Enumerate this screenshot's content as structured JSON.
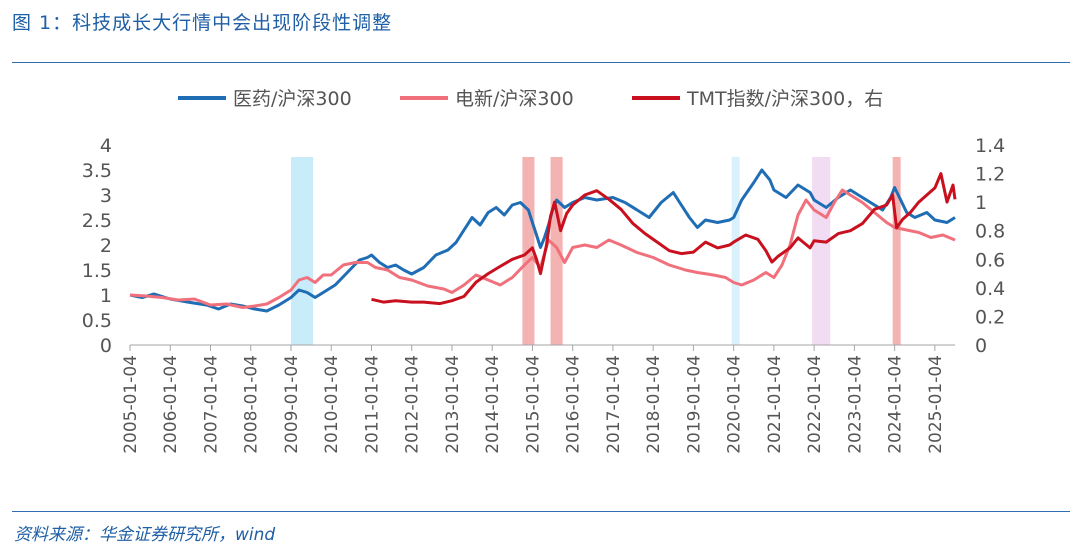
{
  "figure": {
    "title": "图 1：科技成长大行情中会出现阶段性调整",
    "source": "资料来源：华金证券研究所，wind"
  },
  "chart_data": {
    "type": "line",
    "x_start_year": 2005,
    "x_end_year": 2025.5,
    "x_tick_labels": [
      "2005-01-04",
      "2006-01-04",
      "2007-01-04",
      "2008-01-04",
      "2009-01-04",
      "2010-01-04",
      "2011-01-04",
      "2012-01-04",
      "2013-01-04",
      "2014-01-04",
      "2015-01-04",
      "2016-01-04",
      "2017-01-04",
      "2018-01-04",
      "2019-01-04",
      "2020-01-04",
      "2021-01-04",
      "2022-01-04",
      "2023-01-04",
      "2024-01-04",
      "2025-01-04"
    ],
    "y_left": {
      "min": 0,
      "max": 4,
      "ticks": [
        "0",
        "0.5",
        "1",
        "1.5",
        "2",
        "2.5",
        "3",
        "3.5",
        "4"
      ]
    },
    "y_right": {
      "min": 0,
      "max": 1.4,
      "ticks": [
        "0",
        "0.2",
        "0.4",
        "0.6",
        "0.8",
        "1",
        "1.2",
        "1.4"
      ]
    },
    "series": [
      {
        "name": "医药/沪深300",
        "axis": "left",
        "color": "#1f6db5",
        "points": [
          [
            2005.0,
            1.0
          ],
          [
            2005.3,
            0.95
          ],
          [
            2005.6,
            1.02
          ],
          [
            2006.0,
            0.92
          ],
          [
            2006.5,
            0.85
          ],
          [
            2006.9,
            0.8
          ],
          [
            2007.2,
            0.72
          ],
          [
            2007.5,
            0.82
          ],
          [
            2007.8,
            0.78
          ],
          [
            2008.1,
            0.72
          ],
          [
            2008.4,
            0.68
          ],
          [
            2008.7,
            0.8
          ],
          [
            2009.0,
            0.95
          ],
          [
            2009.2,
            1.1
          ],
          [
            2009.4,
            1.05
          ],
          [
            2009.6,
            0.95
          ],
          [
            2009.8,
            1.05
          ],
          [
            2010.1,
            1.2
          ],
          [
            2010.4,
            1.45
          ],
          [
            2010.7,
            1.7
          ],
          [
            2010.9,
            1.75
          ],
          [
            2011.0,
            1.8
          ],
          [
            2011.2,
            1.65
          ],
          [
            2011.4,
            1.55
          ],
          [
            2011.6,
            1.6
          ],
          [
            2011.8,
            1.5
          ],
          [
            2012.0,
            1.42
          ],
          [
            2012.3,
            1.55
          ],
          [
            2012.6,
            1.8
          ],
          [
            2012.9,
            1.9
          ],
          [
            2013.1,
            2.05
          ],
          [
            2013.3,
            2.3
          ],
          [
            2013.5,
            2.55
          ],
          [
            2013.7,
            2.4
          ],
          [
            2013.9,
            2.65
          ],
          [
            2014.1,
            2.75
          ],
          [
            2014.3,
            2.6
          ],
          [
            2014.5,
            2.8
          ],
          [
            2014.7,
            2.85
          ],
          [
            2014.9,
            2.7
          ],
          [
            2015.0,
            2.45
          ],
          [
            2015.1,
            2.2
          ],
          [
            2015.2,
            1.95
          ],
          [
            2015.3,
            2.15
          ],
          [
            2015.4,
            2.4
          ],
          [
            2015.5,
            2.7
          ],
          [
            2015.6,
            2.9
          ],
          [
            2015.8,
            2.75
          ],
          [
            2016.0,
            2.85
          ],
          [
            2016.3,
            2.95
          ],
          [
            2016.6,
            2.9
          ],
          [
            2017.0,
            2.95
          ],
          [
            2017.3,
            2.85
          ],
          [
            2017.6,
            2.7
          ],
          [
            2017.9,
            2.55
          ],
          [
            2018.2,
            2.85
          ],
          [
            2018.5,
            3.05
          ],
          [
            2018.7,
            2.8
          ],
          [
            2018.9,
            2.55
          ],
          [
            2019.1,
            2.35
          ],
          [
            2019.3,
            2.5
          ],
          [
            2019.6,
            2.45
          ],
          [
            2019.9,
            2.5
          ],
          [
            2020.0,
            2.55
          ],
          [
            2020.2,
            2.9
          ],
          [
            2020.5,
            3.25
          ],
          [
            2020.7,
            3.5
          ],
          [
            2020.9,
            3.3
          ],
          [
            2021.0,
            3.1
          ],
          [
            2021.3,
            2.95
          ],
          [
            2021.6,
            3.2
          ],
          [
            2021.9,
            3.05
          ],
          [
            2022.0,
            2.9
          ],
          [
            2022.3,
            2.75
          ],
          [
            2022.6,
            2.95
          ],
          [
            2022.9,
            3.1
          ],
          [
            2023.1,
            3.0
          ],
          [
            2023.4,
            2.85
          ],
          [
            2023.7,
            2.7
          ],
          [
            2023.9,
            2.95
          ],
          [
            2024.0,
            3.15
          ],
          [
            2024.15,
            2.9
          ],
          [
            2024.3,
            2.65
          ],
          [
            2024.5,
            2.55
          ],
          [
            2024.8,
            2.65
          ],
          [
            2025.0,
            2.5
          ],
          [
            2025.3,
            2.45
          ],
          [
            2025.5,
            2.55
          ]
        ]
      },
      {
        "name": "电新/沪深300",
        "axis": "left",
        "color": "#f0707c",
        "points": [
          [
            2005.0,
            1.0
          ],
          [
            2005.4,
            0.98
          ],
          [
            2005.8,
            0.95
          ],
          [
            2006.2,
            0.9
          ],
          [
            2006.6,
            0.92
          ],
          [
            2007.0,
            0.8
          ],
          [
            2007.4,
            0.82
          ],
          [
            2007.8,
            0.75
          ],
          [
            2008.1,
            0.78
          ],
          [
            2008.4,
            0.82
          ],
          [
            2008.7,
            0.95
          ],
          [
            2009.0,
            1.1
          ],
          [
            2009.2,
            1.3
          ],
          [
            2009.4,
            1.35
          ],
          [
            2009.6,
            1.25
          ],
          [
            2009.8,
            1.4
          ],
          [
            2010.0,
            1.4
          ],
          [
            2010.3,
            1.6
          ],
          [
            2010.6,
            1.65
          ],
          [
            2010.9,
            1.65
          ],
          [
            2011.1,
            1.55
          ],
          [
            2011.4,
            1.5
          ],
          [
            2011.7,
            1.35
          ],
          [
            2012.0,
            1.3
          ],
          [
            2012.4,
            1.18
          ],
          [
            2012.8,
            1.12
          ],
          [
            2013.0,
            1.05
          ],
          [
            2013.3,
            1.2
          ],
          [
            2013.6,
            1.4
          ],
          [
            2013.9,
            1.3
          ],
          [
            2014.2,
            1.2
          ],
          [
            2014.5,
            1.35
          ],
          [
            2014.8,
            1.6
          ],
          [
            2015.0,
            1.75
          ],
          [
            2015.1,
            1.65
          ],
          [
            2015.2,
            1.55
          ],
          [
            2015.4,
            2.1
          ],
          [
            2015.6,
            1.95
          ],
          [
            2015.8,
            1.65
          ],
          [
            2016.0,
            1.95
          ],
          [
            2016.3,
            2.0
          ],
          [
            2016.6,
            1.95
          ],
          [
            2016.9,
            2.1
          ],
          [
            2017.2,
            2.0
          ],
          [
            2017.6,
            1.85
          ],
          [
            2018.0,
            1.75
          ],
          [
            2018.4,
            1.6
          ],
          [
            2018.8,
            1.5
          ],
          [
            2019.1,
            1.45
          ],
          [
            2019.5,
            1.4
          ],
          [
            2019.8,
            1.35
          ],
          [
            2020.0,
            1.25
          ],
          [
            2020.2,
            1.2
          ],
          [
            2020.5,
            1.3
          ],
          [
            2020.8,
            1.45
          ],
          [
            2021.0,
            1.35
          ],
          [
            2021.2,
            1.6
          ],
          [
            2021.4,
            2.0
          ],
          [
            2021.6,
            2.6
          ],
          [
            2021.8,
            2.9
          ],
          [
            2022.0,
            2.7
          ],
          [
            2022.3,
            2.55
          ],
          [
            2022.5,
            2.85
          ],
          [
            2022.7,
            3.1
          ],
          [
            2022.9,
            3.0
          ],
          [
            2023.2,
            2.85
          ],
          [
            2023.5,
            2.65
          ],
          [
            2023.8,
            2.45
          ],
          [
            2024.0,
            2.35
          ],
          [
            2024.3,
            2.3
          ],
          [
            2024.6,
            2.25
          ],
          [
            2024.9,
            2.15
          ],
          [
            2025.2,
            2.2
          ],
          [
            2025.5,
            2.1
          ]
        ]
      },
      {
        "name": "TMT指数/沪深300，右",
        "axis": "right",
        "color": "#c8101e",
        "points": [
          [
            2011.0,
            0.32
          ],
          [
            2011.3,
            0.3
          ],
          [
            2011.6,
            0.31
          ],
          [
            2012.0,
            0.3
          ],
          [
            2012.3,
            0.3
          ],
          [
            2012.7,
            0.29
          ],
          [
            2013.0,
            0.31
          ],
          [
            2013.3,
            0.34
          ],
          [
            2013.6,
            0.44
          ],
          [
            2013.9,
            0.5
          ],
          [
            2014.2,
            0.55
          ],
          [
            2014.5,
            0.6
          ],
          [
            2014.8,
            0.63
          ],
          [
            2015.0,
            0.68
          ],
          [
            2015.1,
            0.6
          ],
          [
            2015.2,
            0.5
          ],
          [
            2015.35,
            0.7
          ],
          [
            2015.45,
            0.9
          ],
          [
            2015.55,
            1.0
          ],
          [
            2015.7,
            0.8
          ],
          [
            2015.85,
            0.92
          ],
          [
            2016.0,
            0.98
          ],
          [
            2016.3,
            1.05
          ],
          [
            2016.6,
            1.08
          ],
          [
            2016.9,
            1.02
          ],
          [
            2017.2,
            0.95
          ],
          [
            2017.5,
            0.85
          ],
          [
            2017.8,
            0.78
          ],
          [
            2018.1,
            0.72
          ],
          [
            2018.4,
            0.66
          ],
          [
            2018.7,
            0.64
          ],
          [
            2019.0,
            0.65
          ],
          [
            2019.3,
            0.72
          ],
          [
            2019.6,
            0.68
          ],
          [
            2019.9,
            0.7
          ],
          [
            2020.0,
            0.72
          ],
          [
            2020.3,
            0.77
          ],
          [
            2020.6,
            0.74
          ],
          [
            2020.8,
            0.66
          ],
          [
            2020.95,
            0.58
          ],
          [
            2021.1,
            0.62
          ],
          [
            2021.4,
            0.68
          ],
          [
            2021.6,
            0.75
          ],
          [
            2021.9,
            0.68
          ],
          [
            2022.0,
            0.73
          ],
          [
            2022.3,
            0.72
          ],
          [
            2022.6,
            0.78
          ],
          [
            2022.9,
            0.8
          ],
          [
            2023.2,
            0.85
          ],
          [
            2023.5,
            0.95
          ],
          [
            2023.8,
            0.98
          ],
          [
            2023.95,
            1.05
          ],
          [
            2024.05,
            0.82
          ],
          [
            2024.2,
            0.88
          ],
          [
            2024.4,
            0.93
          ],
          [
            2024.6,
            1.0
          ],
          [
            2024.8,
            1.05
          ],
          [
            2025.0,
            1.1
          ],
          [
            2025.15,
            1.2
          ],
          [
            2025.3,
            1.0
          ],
          [
            2025.45,
            1.12
          ],
          [
            2025.5,
            1.02
          ]
        ]
      }
    ],
    "shaded_periods": [
      {
        "start": 2009.0,
        "end": 2009.55,
        "color": "#c9ecfb"
      },
      {
        "start": 2014.75,
        "end": 2015.05,
        "color": "#f4b3b3"
      },
      {
        "start": 2015.45,
        "end": 2015.75,
        "color": "#f4b3b3"
      },
      {
        "start": 2019.95,
        "end": 2020.15,
        "color": "#d9f1fb"
      },
      {
        "start": 2021.95,
        "end": 2022.4,
        "color": "#f1dcf3"
      },
      {
        "start": 2023.95,
        "end": 2024.15,
        "color": "#f4b3b3"
      }
    ]
  }
}
